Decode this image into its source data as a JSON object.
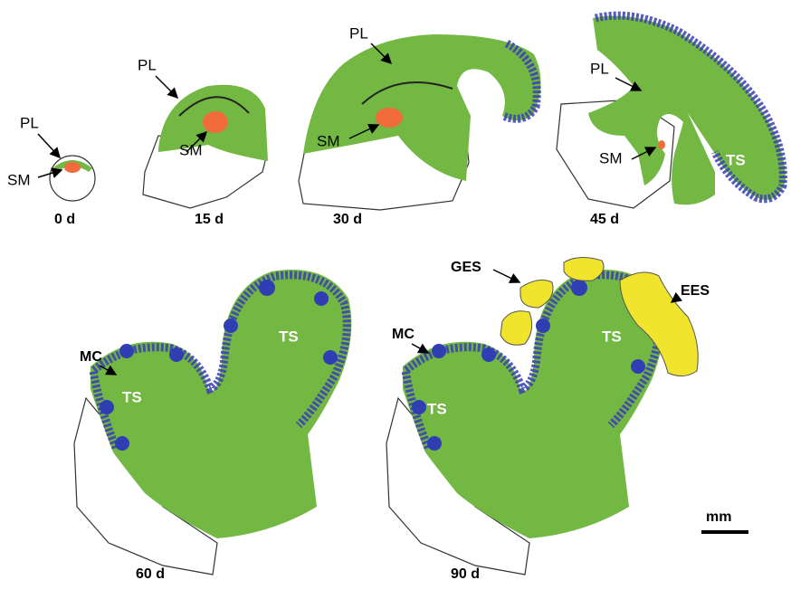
{
  "panels": [
    {
      "time": "0 d",
      "labels": [
        "PL",
        "SM"
      ]
    },
    {
      "time": "15 d",
      "labels": [
        "PL",
        "SM"
      ]
    },
    {
      "time": "30 d",
      "labels": [
        "PL",
        "SM"
      ]
    },
    {
      "time": "45 d",
      "labels": [
        "PL",
        "SM",
        "TS"
      ]
    },
    {
      "time": "60 d",
      "labels": [
        "MC",
        "TS",
        "TS"
      ]
    },
    {
      "time": "90 d",
      "labels": [
        "GES",
        "EES",
        "MC",
        "TS",
        "TS"
      ]
    }
  ],
  "scale_bar": "mm"
}
